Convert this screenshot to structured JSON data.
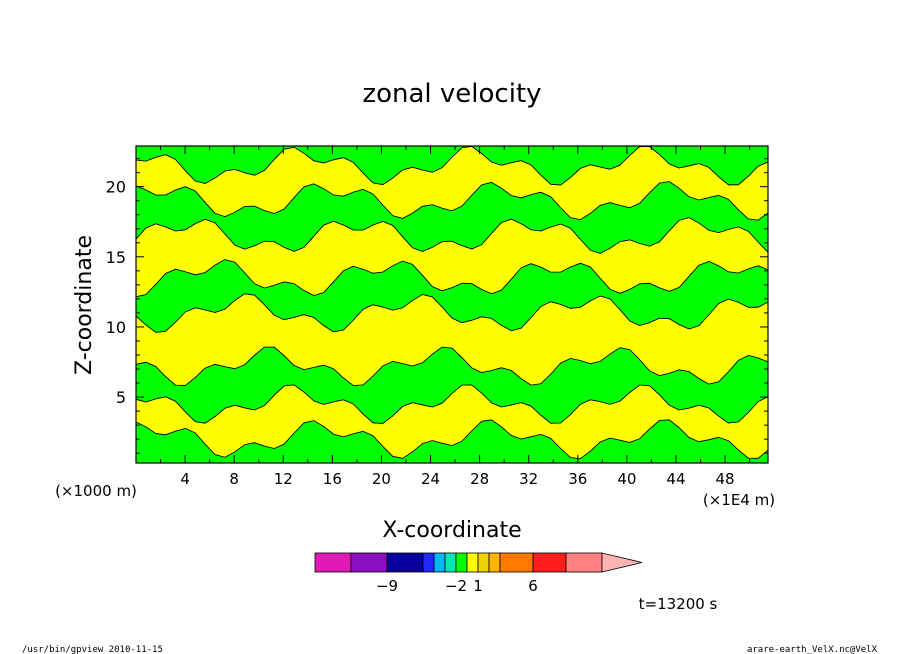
{
  "chart_data": {
    "type": "heatmap",
    "title": "zonal velocity",
    "xlabel": "X-coordinate",
    "ylabel": "Z-coordinate",
    "x_unit": "(×1E4 m)",
    "y_unit": "(×1000 m)",
    "xlim": [
      0,
      51.5
    ],
    "ylim": [
      0.3,
      22.9
    ],
    "x_ticks": [
      4,
      8,
      12,
      16,
      20,
      24,
      28,
      32,
      36,
      40,
      44,
      48
    ],
    "y_ticks": [
      5,
      10,
      15,
      20
    ],
    "time_label": "t=13200 s",
    "color_levels": [
      {
        "color": "#e01ab4"
      },
      {
        "color": "#8a10c0"
      },
      {
        "color": "#0a00a0"
      },
      {
        "color": "#1e28ff"
      },
      {
        "color": "#00b4ff"
      },
      {
        "color": "#00e6b4"
      },
      {
        "color": "#00ff00"
      },
      {
        "color": "#ffff00"
      },
      {
        "color": "#f0d200"
      },
      {
        "color": "#ffb400"
      },
      {
        "color": "#ff7800"
      },
      {
        "color": "#ff1e1e"
      },
      {
        "color": "#ff8080"
      },
      {
        "color": "#ffb4b4"
      }
    ],
    "colorbar_labels": [
      {
        "text": "−9",
        "after_level": 1
      },
      {
        "text": "−2",
        "after_level": 5
      },
      {
        "text": "1",
        "after_level": 7
      },
      {
        "text": "6",
        "after_level": 10
      }
    ],
    "bands": [
      {
        "color": "#00ff00",
        "z_low": 0.3,
        "z_high": 2.0
      },
      {
        "color": "#ffff00",
        "z_low": 2.0,
        "z_high": 4.5
      },
      {
        "color": "#00ff00",
        "z_low": 4.5,
        "z_high": 7.2
      },
      {
        "color": "#ffff00",
        "z_low": 7.2,
        "z_high": 11.0
      },
      {
        "color": "#00ff00",
        "z_low": 11.0,
        "z_high": 13.5
      },
      {
        "color": "#ffff00",
        "z_low": 13.5,
        "z_high": 16.5
      },
      {
        "color": "#00ff00",
        "z_low": 16.5,
        "z_high": 19.0
      },
      {
        "color": "#ffff00",
        "z_low": 19.0,
        "z_high": 21.5
      },
      {
        "color": "#00ff00",
        "z_low": 21.5,
        "z_high": 22.9
      }
    ]
  },
  "footer": {
    "program": "/usr/bin/gpview   2010-11-15",
    "source": "arare-earth_VelX.nc@VelX"
  }
}
